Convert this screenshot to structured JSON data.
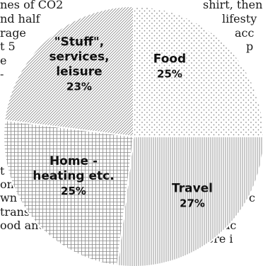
{
  "left_text": [
    "nes of CO2",
    "nd half",
    "rage",
    "t 5",
    "e",
    "-",
    "t",
    "on",
    "wn",
    "trans-",
    "ood and"
  ],
  "right_text": [
    "shirt, then",
    "lifesty",
    "acc",
    "p",
    "c",
    "by",
    "prac",
    "there i"
  ],
  "chart_data": {
    "type": "pie",
    "title": "",
    "slices": [
      {
        "name": "Food",
        "value": 25,
        "label": "25%",
        "pattern": "dots"
      },
      {
        "name": "Travel",
        "value": 27,
        "label": "27%",
        "pattern": "vertical-lines"
      },
      {
        "name": "Home - heating etc.",
        "value": 25,
        "label": "25%",
        "pattern": "grid"
      },
      {
        "name": "\"Stuff\", services, leisure",
        "value": 23,
        "label": "23%",
        "pattern": "diagonal-lines"
      }
    ],
    "slice_label_lines": [
      [
        "Food"
      ],
      [
        "Travel"
      ],
      [
        "Home -",
        "heating etc."
      ],
      [
        "\"Stuff\",",
        "services,",
        "leisure"
      ]
    ],
    "colors": {
      "stroke": "#ffffff",
      "pattern_ink": "#8a8a8a",
      "background": "#ffffff"
    }
  }
}
